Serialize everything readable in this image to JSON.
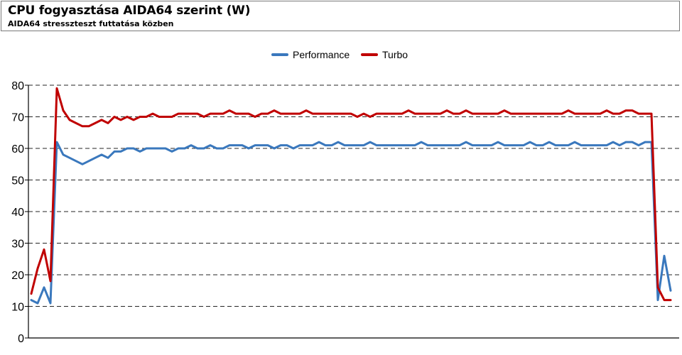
{
  "header": {
    "title": "CPU fogyasztása AIDA64 szerint (W)",
    "subtitle": "AIDA64 stresszteszt futtatása közben"
  },
  "colors": {
    "performance": "#3a78bd",
    "turbo": "#c00000",
    "grid": "#000000",
    "axis": "#000000"
  },
  "chart_data": {
    "type": "line",
    "title": "CPU fogyasztása AIDA64 szerint (W)",
    "subtitle": "AIDA64 stresszteszt futtatása közben",
    "xlabel": "",
    "ylabel": "",
    "ylim": [
      0,
      80
    ],
    "yticks": [
      0,
      10,
      20,
      30,
      40,
      50,
      60,
      70,
      80
    ],
    "grid": "horizontal dashed",
    "legend": "top-center",
    "x_count": 101,
    "series": [
      {
        "name": "Performance",
        "color": "#3a78bd",
        "values": [
          12,
          11,
          16,
          11,
          62,
          58,
          57,
          56,
          55,
          56,
          57,
          58,
          57,
          59,
          59,
          60,
          60,
          59,
          60,
          60,
          60,
          60,
          59,
          60,
          60,
          61,
          60,
          60,
          61,
          60,
          60,
          61,
          61,
          61,
          60,
          61,
          61,
          61,
          60,
          61,
          61,
          60,
          61,
          61,
          61,
          62,
          61,
          61,
          62,
          61,
          61,
          61,
          61,
          62,
          61,
          61,
          61,
          61,
          61,
          61,
          61,
          62,
          61,
          61,
          61,
          61,
          61,
          61,
          62,
          61,
          61,
          61,
          61,
          62,
          61,
          61,
          61,
          61,
          62,
          61,
          61,
          62,
          61,
          61,
          61,
          62,
          61,
          61,
          61,
          61,
          61,
          62,
          61,
          62,
          62,
          61,
          62,
          62,
          12,
          26,
          15
        ]
      },
      {
        "name": "Turbo",
        "color": "#c00000",
        "values": [
          14,
          22,
          28,
          18,
          79,
          72,
          69,
          68,
          67,
          67,
          68,
          69,
          68,
          70,
          69,
          70,
          69,
          70,
          70,
          71,
          70,
          70,
          70,
          71,
          71,
          71,
          71,
          70,
          71,
          71,
          71,
          72,
          71,
          71,
          71,
          70,
          71,
          71,
          72,
          71,
          71,
          71,
          71,
          72,
          71,
          71,
          71,
          71,
          71,
          71,
          71,
          70,
          71,
          70,
          71,
          71,
          71,
          71,
          71,
          72,
          71,
          71,
          71,
          71,
          71,
          72,
          71,
          71,
          72,
          71,
          71,
          71,
          71,
          71,
          72,
          71,
          71,
          71,
          71,
          71,
          71,
          71,
          71,
          71,
          72,
          71,
          71,
          71,
          71,
          71,
          72,
          71,
          71,
          72,
          72,
          71,
          71,
          71,
          16,
          12,
          12
        ]
      }
    ]
  }
}
